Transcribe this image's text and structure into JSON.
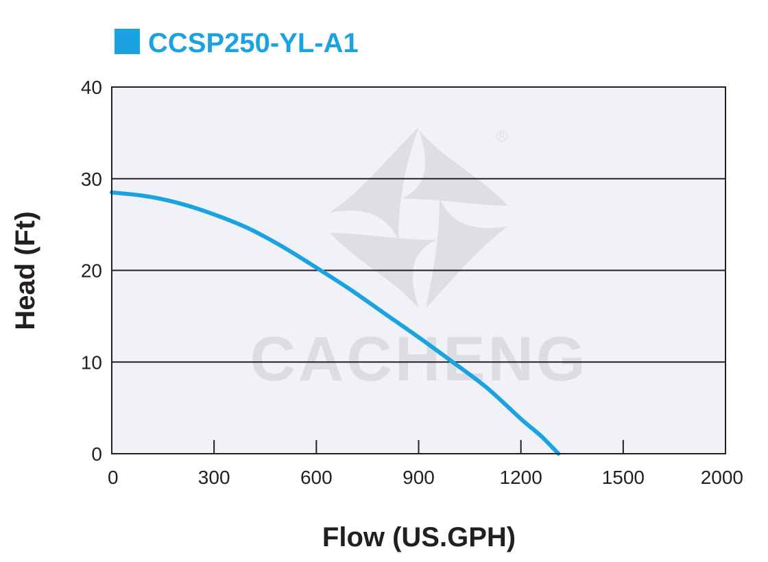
{
  "chart_data": {
    "type": "line",
    "title": "CCSP250-YL-A1",
    "xlabel": "Flow (US.GPH)",
    "ylabel": "Head (Ft)",
    "x_ticks": [
      "0",
      "300",
      "600",
      "900",
      "1200",
      "1500",
      "2000"
    ],
    "y_ticks": [
      "0",
      "10",
      "20",
      "30",
      "40"
    ],
    "ylim": [
      0,
      40
    ],
    "grid": "horizontal",
    "legend": "top-left",
    "series": [
      {
        "name": "CCSP250-YL-A1",
        "x": [
          0,
          100,
          200,
          300,
          400,
          500,
          600,
          700,
          800,
          900,
          1000,
          1100,
          1200,
          1260,
          1310
        ],
        "y": [
          28.5,
          28.1,
          27.3,
          26.1,
          24.6,
          22.6,
          20.3,
          17.9,
          15.3,
          12.7,
          10.0,
          7.2,
          3.8,
          1.9,
          0
        ]
      }
    ]
  },
  "watermark": {
    "text": "CACHENG",
    "registered_mark": "®"
  },
  "colors": {
    "series": "#1aa3e0",
    "title": "#1aa3e0",
    "plot_bg": "#f1f2f8",
    "axis": "#231f20",
    "watermark": "#dcdde2"
  }
}
